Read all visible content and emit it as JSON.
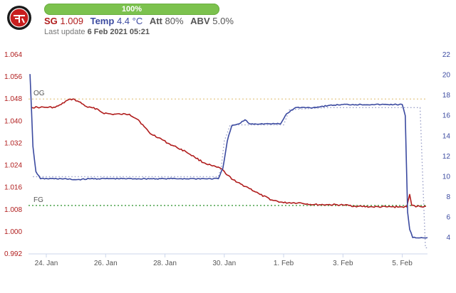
{
  "header": {
    "progress_label": "100%",
    "progress_value": 1.0,
    "sg_label": "SG",
    "sg_value": "1.009",
    "temp_label": "Temp",
    "temp_value": "4.4 °C",
    "att_label": "Att",
    "att_value": "80%",
    "abv_label": "ABV",
    "abv_value": "5.0%",
    "last_update_label": "Last update",
    "last_update_value": "6 Feb 2021 05:21"
  },
  "colors": {
    "sg": "#b01c1c",
    "temp": "#3b4aa0",
    "og_line": "#e5c98a",
    "fg_line": "#3a9a3a",
    "progress": "#7cc24e"
  },
  "icons": {
    "logo": "brewery-badge-icon"
  },
  "chart_data": {
    "type": "line",
    "x_unit": "days",
    "xlim": [
      -0.6,
      12.85
    ],
    "x_ticks": [
      {
        "x": 0,
        "label": "24. Jan"
      },
      {
        "x": 2,
        "label": "26. Jan"
      },
      {
        "x": 4,
        "label": "28. Jan"
      },
      {
        "x": 6,
        "label": "30. Jan"
      },
      {
        "x": 8,
        "label": "1. Feb"
      },
      {
        "x": 10,
        "label": "3. Feb"
      },
      {
        "x": 12,
        "label": "5. Feb"
      }
    ],
    "y_left": {
      "min": 0.992,
      "max": 1.064,
      "ticks": [
        "0.992",
        "1.000",
        "1.008",
        "1.016",
        "1.024",
        "1.032",
        "1.040",
        "1.048",
        "1.056",
        "1.064"
      ]
    },
    "y_right": {
      "min": 2.4,
      "max": 22,
      "ticks": [
        "4",
        "6",
        "8",
        "10",
        "12",
        "14",
        "16",
        "18",
        "20",
        "22"
      ]
    },
    "reference_lines": [
      {
        "name": "OG",
        "value": 1.048,
        "axis": "left",
        "color": "#e5c98a"
      },
      {
        "name": "FG",
        "value": 1.0095,
        "axis": "left",
        "color": "#3a9a3a"
      }
    ],
    "series": [
      {
        "axis": "left",
        "color": "#b01c1c",
        "points": [
          [
            -0.5,
            1.045
          ],
          [
            -0.2,
            1.045
          ],
          [
            0,
            1.045
          ],
          [
            0.3,
            1.045
          ],
          [
            0.5,
            1.046
          ],
          [
            0.7,
            1.0475
          ],
          [
            0.9,
            1.048
          ],
          [
            1.1,
            1.047
          ],
          [
            1.4,
            1.045
          ],
          [
            1.7,
            1.0445
          ],
          [
            1.9,
            1.043
          ],
          [
            2.2,
            1.0425
          ],
          [
            2.5,
            1.0425
          ],
          [
            2.8,
            1.0425
          ],
          [
            3.1,
            1.0405
          ],
          [
            3.3,
            1.038
          ],
          [
            3.5,
            1.0355
          ],
          [
            3.8,
            1.034
          ],
          [
            4.1,
            1.032
          ],
          [
            4.4,
            1.0305
          ],
          [
            4.7,
            1.029
          ],
          [
            5.0,
            1.027
          ],
          [
            5.3,
            1.025
          ],
          [
            5.6,
            1.0238
          ],
          [
            5.9,
            1.0228
          ],
          [
            6.1,
            1.0205
          ],
          [
            6.4,
            1.018
          ],
          [
            6.8,
            1.016
          ],
          [
            7.2,
            1.0135
          ],
          [
            7.6,
            1.0115
          ],
          [
            8.0,
            1.0105
          ],
          [
            8.5,
            1.0105
          ],
          [
            9.0,
            1.0098
          ],
          [
            9.5,
            1.0098
          ],
          [
            10.0,
            1.0097
          ],
          [
            10.5,
            1.0092
          ],
          [
            11.0,
            1.009
          ],
          [
            11.5,
            1.009
          ],
          [
            11.9,
            1.009
          ],
          [
            12.15,
            1.009
          ],
          [
            12.25,
            1.0135
          ],
          [
            12.32,
            1.0095
          ],
          [
            12.5,
            1.0092
          ],
          [
            12.8,
            1.0092
          ]
        ]
      },
      {
        "axis": "right",
        "color": "#3b4aa0",
        "points": [
          [
            -0.55,
            20.1
          ],
          [
            -0.45,
            13
          ],
          [
            -0.35,
            10.5
          ],
          [
            -0.2,
            9.8
          ],
          [
            0.5,
            9.8
          ],
          [
            1.0,
            9.7
          ],
          [
            1.5,
            9.8
          ],
          [
            2.0,
            9.8
          ],
          [
            3.0,
            9.8
          ],
          [
            4.0,
            9.8
          ],
          [
            4.5,
            9.8
          ],
          [
            5.0,
            9.8
          ],
          [
            5.8,
            9.8
          ],
          [
            5.95,
            10.8
          ],
          [
            6.1,
            13.5
          ],
          [
            6.25,
            15.0
          ],
          [
            6.5,
            15.2
          ],
          [
            6.7,
            15.6
          ],
          [
            6.85,
            15.2
          ],
          [
            7.5,
            15.2
          ],
          [
            7.9,
            15.2
          ],
          [
            8.1,
            16.2
          ],
          [
            8.4,
            16.8
          ],
          [
            9.0,
            16.8
          ],
          [
            9.5,
            17.0
          ],
          [
            10.0,
            17.1
          ],
          [
            11.0,
            17.1
          ],
          [
            12.0,
            17.1
          ],
          [
            12.1,
            16.0
          ],
          [
            12.18,
            6.5
          ],
          [
            12.25,
            4.8
          ],
          [
            12.35,
            4.0
          ],
          [
            12.85,
            4.0
          ]
        ]
      }
    ],
    "dotted_guide": {
      "axis": "right",
      "color": "#9aa0c8",
      "points": [
        [
          -0.45,
          10
        ],
        [
          -0.2,
          10
        ],
        [
          5.8,
          10
        ],
        [
          5.9,
          11
        ],
        [
          6.0,
          13.5
        ],
        [
          6.2,
          15.1
        ],
        [
          8.0,
          15.1
        ],
        [
          8.2,
          16.6
        ],
        [
          9.5,
          16.8
        ],
        [
          12.6,
          16.8
        ],
        [
          12.72,
          7.5
        ],
        [
          12.78,
          3.0
        ],
        [
          12.9,
          3.0
        ]
      ]
    }
  }
}
